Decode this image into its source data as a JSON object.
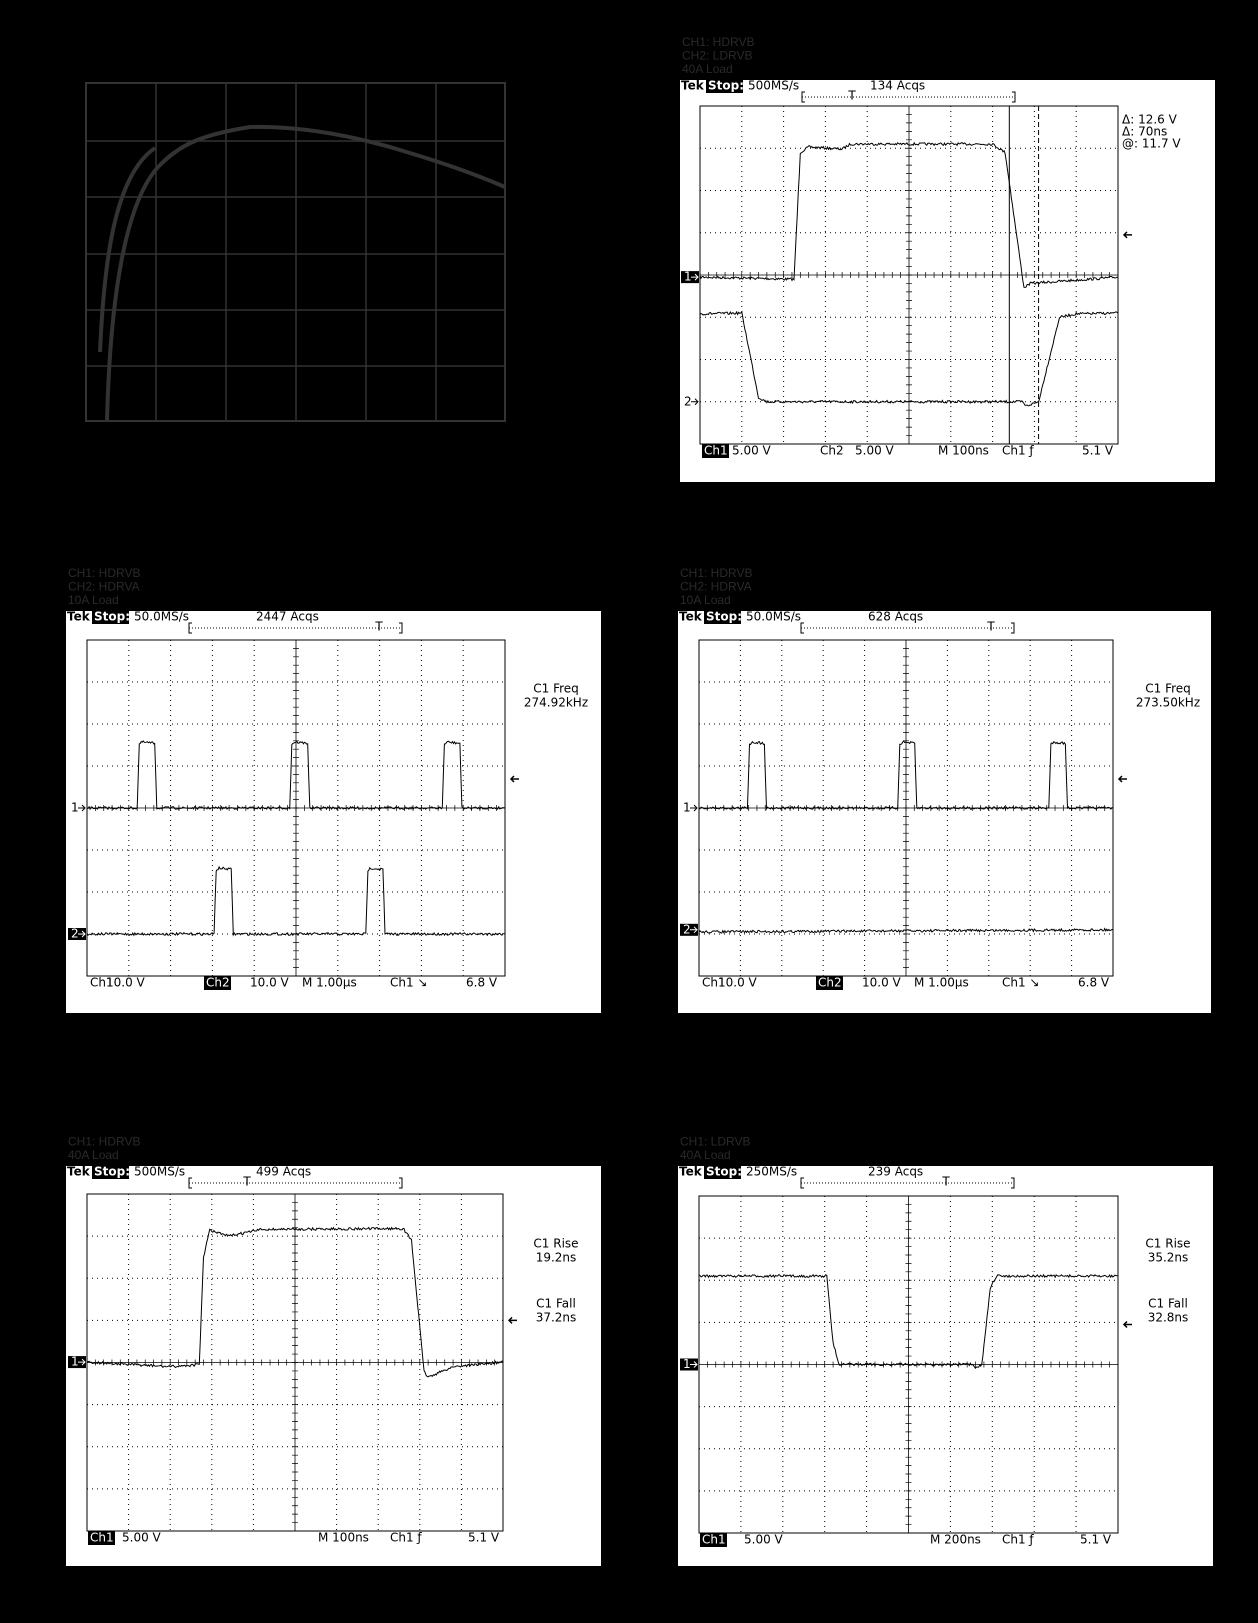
{
  "panels": [
    {
      "caption": [
        "CH1: HDRVB",
        "CH2: LDRVB",
        "40A Load"
      ],
      "header": {
        "brand": "Tek",
        "state": "Stop:",
        "rate": "500MS/s",
        "acqs": "134 Acqs"
      },
      "readout": [
        "Δ: 12.6 V",
        "Δ: 70ns",
        "@: 11.7 V"
      ],
      "markers": [
        "1",
        "2"
      ],
      "footer": [
        {
          "text": "Ch1",
          "inverse": true
        },
        {
          "text": "5.00 V",
          "inverse": false
        },
        {
          "text": "Ch2",
          "inverse": false
        },
        {
          "text": "5.00 V",
          "inverse": false
        },
        {
          "text": "M  100ns",
          "inverse": false
        },
        {
          "text": "Ch1 ƒ",
          "inverse": false
        },
        {
          "text": "5.1 V",
          "inverse": false
        }
      ]
    },
    {
      "caption": [
        "CH1: HDRVB",
        "CH2: HDRVA",
        "10A Load"
      ],
      "header": {
        "brand": "Tek",
        "state": "Stop:",
        "rate": "50.0MS/s",
        "acqs": "2447 Acqs"
      },
      "readout": [
        "C1 Freq",
        "274.92kHz"
      ],
      "markers": [
        "1",
        "2"
      ],
      "footer": [
        {
          "text": "Ch1",
          "inverse": false
        },
        {
          "text": "10.0 V",
          "inverse": false
        },
        {
          "text": "Ch2",
          "inverse": true
        },
        {
          "text": "10.0 V",
          "inverse": false
        },
        {
          "text": "M 1.00µs",
          "inverse": false
        },
        {
          "text": "Ch1 ↘",
          "inverse": false
        },
        {
          "text": "6.8 V",
          "inverse": false
        }
      ]
    },
    {
      "caption": [
        "CH1: HDRVB",
        "CH2: HDRVA",
        "10A Load"
      ],
      "header": {
        "brand": "Tek",
        "state": "Stop:",
        "rate": "50.0MS/s",
        "acqs": "628 Acqs"
      },
      "readout": [
        "C1 Freq",
        "273.50kHz"
      ],
      "markers": [
        "1",
        "2"
      ],
      "footer": [
        {
          "text": "Ch1",
          "inverse": false
        },
        {
          "text": "10.0 V",
          "inverse": false
        },
        {
          "text": "Ch2",
          "inverse": true
        },
        {
          "text": "10.0 V",
          "inverse": false
        },
        {
          "text": "M 1.00µs",
          "inverse": false
        },
        {
          "text": "Ch1 ↘",
          "inverse": false
        },
        {
          "text": "6.8 V",
          "inverse": false
        }
      ]
    },
    {
      "caption": [
        "CH1: HDRVB",
        "40A Load"
      ],
      "header": {
        "brand": "Tek",
        "state": "Stop:",
        "rate": "500MS/s",
        "acqs": "499 Acqs"
      },
      "readout": [
        "C1 Rise",
        "19.2ns",
        "C1 Fall",
        "37.2ns"
      ],
      "markers": [
        "1"
      ],
      "footer": [
        {
          "text": "Ch1",
          "inverse": true
        },
        {
          "text": "5.00 V",
          "inverse": false
        },
        {
          "text": "M  100ns",
          "inverse": false
        },
        {
          "text": "Ch1 ƒ",
          "inverse": false
        },
        {
          "text": "5.1 V",
          "inverse": false
        }
      ]
    },
    {
      "caption": [
        "CH1: LDRVB",
        "40A Load"
      ],
      "header": {
        "brand": "Tek",
        "state": "Stop:",
        "rate": "250MS/s",
        "acqs": "239 Acqs"
      },
      "readout": [
        "C1 Rise",
        "35.2ns",
        "C1 Fall",
        "32.8ns"
      ],
      "markers": [
        "1"
      ],
      "footer": [
        {
          "text": "Ch1",
          "inverse": true
        },
        {
          "text": "5.00 V",
          "inverse": false
        },
        {
          "text": "M  200ns",
          "inverse": false
        },
        {
          "text": "Ch1 ƒ",
          "inverse": false
        },
        {
          "text": "5.1 V",
          "inverse": false
        }
      ]
    }
  ]
}
